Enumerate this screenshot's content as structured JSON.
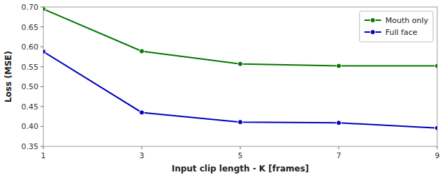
{
  "chart_data": {
    "type": "line",
    "x": [
      1,
      3,
      5,
      7,
      9
    ],
    "series": [
      {
        "name": "Mouth only",
        "color": "#007700",
        "marker": "circle",
        "values": [
          0.695,
          0.589,
          0.557,
          0.552,
          0.552
        ]
      },
      {
        "name": "Full face",
        "color": "#0000bb",
        "marker": "circle",
        "values": [
          0.588,
          0.435,
          0.411,
          0.409,
          0.396
        ]
      }
    ],
    "xlabel": "Input clip length - K [frames]",
    "ylabel": "Loss (MSE)",
    "xlim": [
      1,
      9
    ],
    "ylim": [
      0.35,
      0.7
    ],
    "xticks": [
      1,
      3,
      5,
      7,
      9
    ],
    "yticks": [
      0.35,
      {
        "value": 0.4,
        "label": "0.40"
      },
      0.45,
      {
        "value": 0.5,
        "label": "0.50"
      },
      0.55,
      {
        "value": 0.6,
        "label": "0.60"
      },
      0.65,
      {
        "value": 0.7,
        "label": "0.70"
      }
    ],
    "legend": "upper right",
    "grid": false
  }
}
